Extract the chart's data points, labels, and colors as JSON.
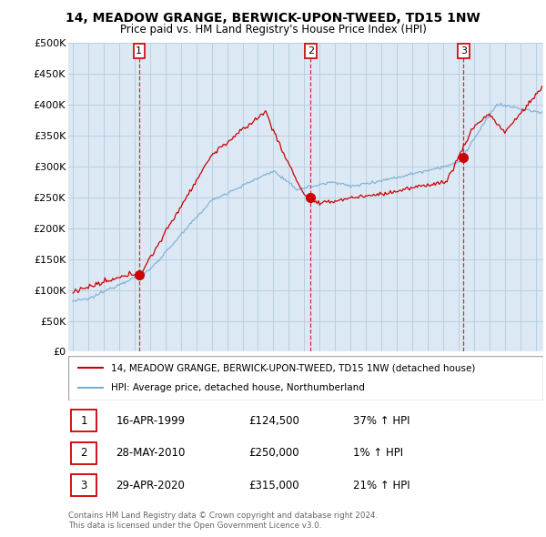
{
  "title": "14, MEADOW GRANGE, BERWICK-UPON-TWEED, TD15 1NW",
  "subtitle": "Price paid vs. HM Land Registry's House Price Index (HPI)",
  "legend_line1": "14, MEADOW GRANGE, BERWICK-UPON-TWEED, TD15 1NW (detached house)",
  "legend_line2": "HPI: Average price, detached house, Northumberland",
  "footnote1": "Contains HM Land Registry data © Crown copyright and database right 2024.",
  "footnote2": "This data is licensed under the Open Government Licence v3.0.",
  "transactions": [
    {
      "num": 1,
      "date": "16-APR-1999",
      "price": "£124,500",
      "pct": "37%",
      "dir": "↑"
    },
    {
      "num": 2,
      "date": "28-MAY-2010",
      "price": "£250,000",
      "pct": "1%",
      "dir": "↑"
    },
    {
      "num": 3,
      "date": "29-APR-2020",
      "price": "£315,000",
      "pct": "21%",
      "dir": "↑"
    }
  ],
  "sale_dates_decimal": [
    1999.29,
    2010.41,
    2020.33
  ],
  "sale_prices": [
    124500,
    250000,
    315000
  ],
  "hpi_color": "#7aadd4",
  "price_color": "#cc0000",
  "vline_color": "#cc0000",
  "background_color": "#ffffff",
  "plot_bg_color": "#dce9f5",
  "grid_color": "#b8cfe0",
  "ylim": [
    0,
    500000
  ],
  "yticks": [
    0,
    50000,
    100000,
    150000,
    200000,
    250000,
    300000,
    350000,
    400000,
    450000,
    500000
  ],
  "xlim_start": 1994.7,
  "xlim_end": 2025.5
}
